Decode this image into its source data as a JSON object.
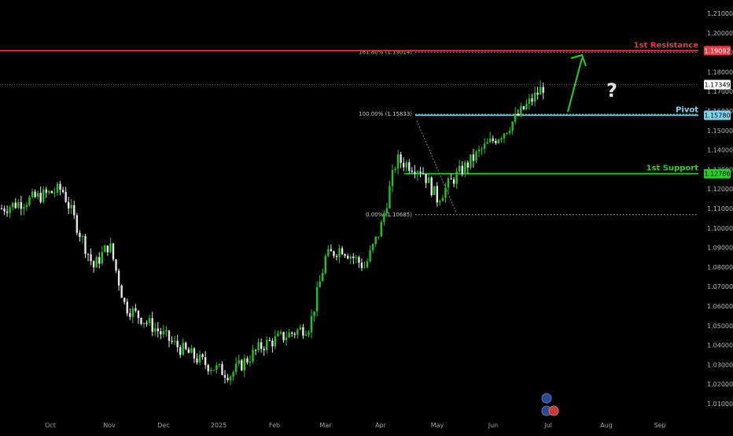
{
  "chart_data": {
    "type": "candlestick",
    "x_axis_labels": [
      "Oct",
      "Nov",
      "Dec",
      "2025",
      "Feb",
      "Mar",
      "Apr",
      "May",
      "Jun",
      "Jul",
      "Aug",
      "Sep"
    ],
    "y_axis_ticks": [
      "1.21000",
      "1.20000",
      "1.19000",
      "1.18000",
      "1.17000",
      "1.16000",
      "1.15000",
      "1.14000",
      "1.13000",
      "1.12000",
      "1.11000",
      "1.10000",
      "1.09000",
      "1.08000",
      "1.07000",
      "1.06000",
      "1.05000",
      "1.04000",
      "1.03000",
      "1.02000",
      "1.01000"
    ],
    "ylim": [
      1.005,
      1.215
    ],
    "current_price": "1.17349",
    "levels": {
      "resistance": {
        "label": "1st Resistance",
        "value": "1.19092",
        "color": "#f23645"
      },
      "pivot": {
        "label": "Pivot",
        "value": "1.15780",
        "color": "#7fd4ee"
      },
      "support": {
        "label": "1st Support",
        "value": "1.12786",
        "color": "#22d422"
      }
    },
    "fibonacci": [
      {
        "label": "161.80% (1.19014)",
        "value": 1.19014
      },
      {
        "label": "100.00% (1.15833)",
        "value": 1.15833
      },
      {
        "label": "0.00% (1.10685)",
        "value": 1.10685
      }
    ],
    "annotation_symbol": "?",
    "colors": {
      "up": "#22c622",
      "down": "#e6e6e6",
      "arrow": "#22d422"
    },
    "price_path": [
      {
        "month": "Oct",
        "price": 1.11
      },
      {
        "month": "Oct",
        "price": 1.12
      },
      {
        "month": "Nov",
        "price": 1.08
      },
      {
        "month": "Nov",
        "price": 1.092
      },
      {
        "month": "Nov",
        "price": 1.06
      },
      {
        "month": "Dec",
        "price": 1.05
      },
      {
        "month": "Dec",
        "price": 1.04
      },
      {
        "month": "2025",
        "price": 1.03
      },
      {
        "month": "2025",
        "price": 1.025
      },
      {
        "month": "Feb",
        "price": 1.04
      },
      {
        "month": "Feb",
        "price": 1.045
      },
      {
        "month": "Mar",
        "price": 1.05
      },
      {
        "month": "Mar",
        "price": 1.085
      },
      {
        "month": "Mar",
        "price": 1.09
      },
      {
        "month": "Apr",
        "price": 1.08
      },
      {
        "month": "Apr",
        "price": 1.1
      },
      {
        "month": "Apr",
        "price": 1.135
      },
      {
        "month": "May",
        "price": 1.13
      },
      {
        "month": "May",
        "price": 1.115
      },
      {
        "month": "May",
        "price": 1.125
      },
      {
        "month": "Jun",
        "price": 1.14
      },
      {
        "month": "Jun",
        "price": 1.15
      },
      {
        "month": "Jul",
        "price": 1.173
      }
    ]
  }
}
